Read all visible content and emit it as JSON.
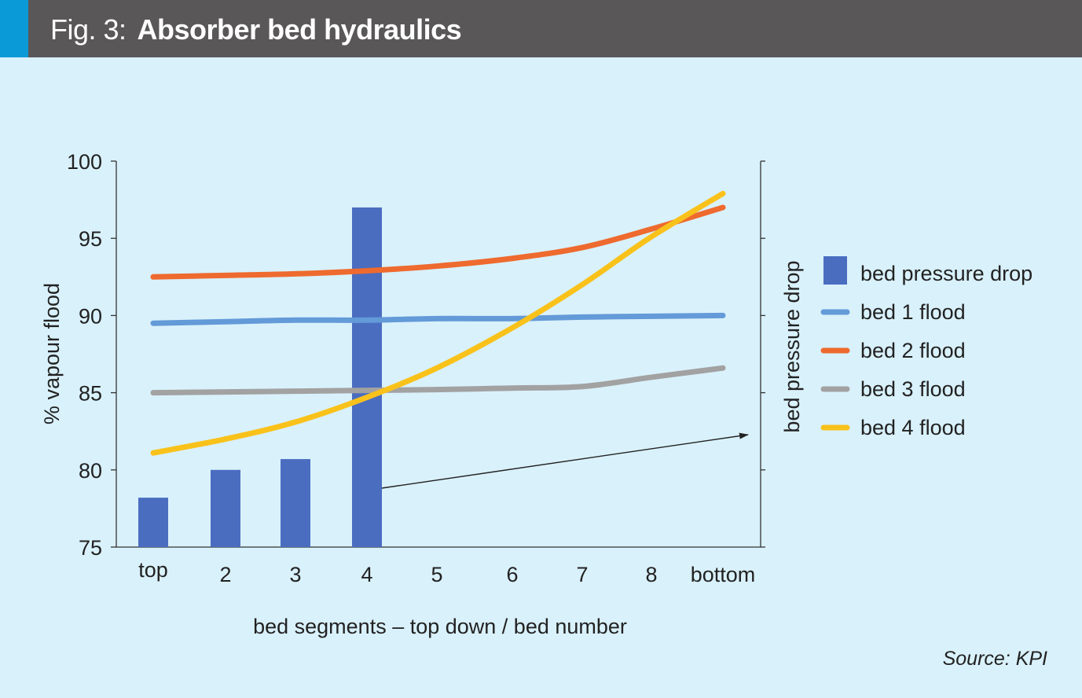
{
  "header": {
    "fig_label": "Fig. 3:",
    "title": "Absorber bed hydraulics"
  },
  "source": "Source: KPI",
  "colors": {
    "header_bg": "#595758",
    "header_accent": "#0a9ad7",
    "panel_bg": "#d9f1fb"
  },
  "chart_data": {
    "type": "bar",
    "xlabel": "bed segments – top down / bed number",
    "ylabel": "% vapour flood",
    "y2label": "bed pressure drop",
    "ylim": [
      75,
      100
    ],
    "yticks": [
      75,
      80,
      85,
      90,
      95,
      100
    ],
    "categories": [
      "top",
      "2",
      "3",
      "4",
      "5",
      "6",
      "7",
      "8",
      "bottom"
    ],
    "bars": {
      "name": "bed pressure drop",
      "color": "#4a6dc0",
      "values": [
        78.2,
        80.0,
        80.7,
        97.0,
        null,
        null,
        null,
        null,
        null
      ]
    },
    "series": [
      {
        "name": "bed 1 flood",
        "color": "#639ad8",
        "values": [
          89.5,
          89.6,
          89.7,
          89.7,
          89.8,
          89.8,
          89.9,
          89.95,
          90.0
        ]
      },
      {
        "name": "bed 2 flood",
        "color": "#ee6a2e",
        "values": [
          92.5,
          92.6,
          92.7,
          92.9,
          93.2,
          93.7,
          94.4,
          95.6,
          97.0
        ]
      },
      {
        "name": "bed 3 flood",
        "color": "#a2a2a2",
        "values": [
          85.0,
          85.05,
          85.1,
          85.15,
          85.2,
          85.3,
          85.4,
          86.0,
          86.6
        ]
      },
      {
        "name": "bed 4 flood",
        "color": "#f9c21b",
        "values": [
          81.1,
          82.0,
          83.1,
          84.7,
          86.6,
          89.2,
          92.0,
          95.1,
          97.9
        ]
      }
    ],
    "legend": {
      "placement": "right",
      "entries": [
        "bed pressure drop",
        "bed 1 flood",
        "bed 2 flood",
        "bed 3 flood",
        "bed 4 flood"
      ]
    },
    "annotation": "arrow from bed 4 pressure-drop bar pointing to the right-hand bed pressure drop axis",
    "grid": false
  }
}
